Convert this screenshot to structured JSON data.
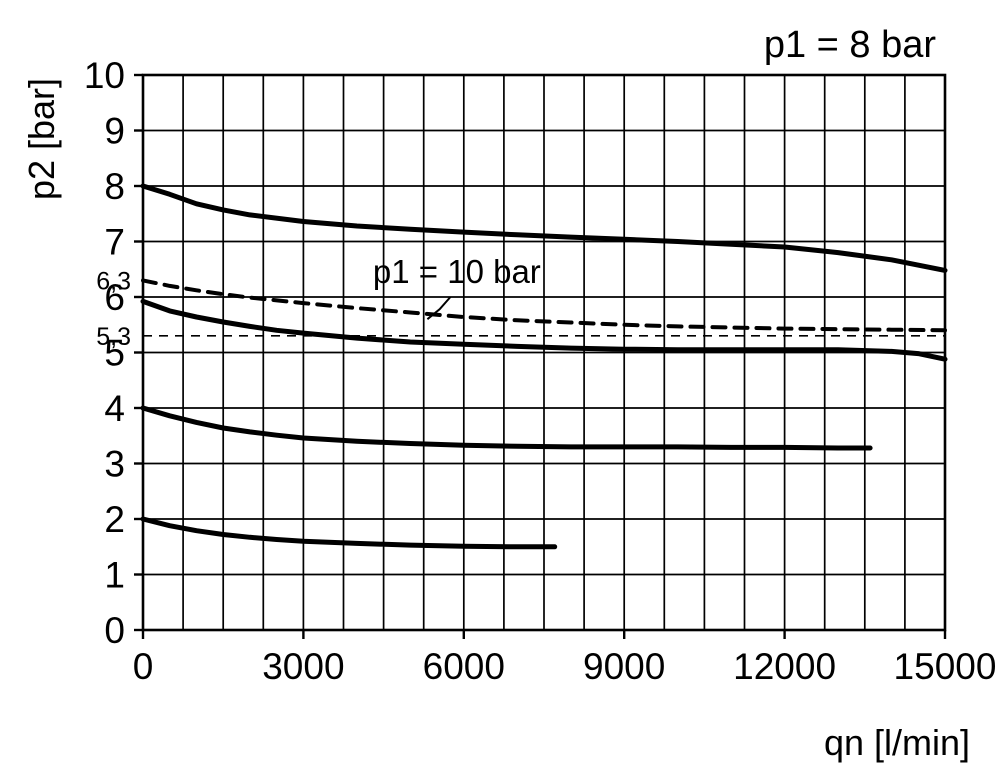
{
  "chart_data": {
    "type": "line",
    "title": "p1 = 8 bar",
    "xlabel": "qn [l/min]",
    "ylabel": "p2 [bar]",
    "xlim": [
      0,
      15000
    ],
    "ylim": [
      0,
      10
    ],
    "x_grid_step": 750,
    "y_grid_step": 1,
    "x_ticks": [
      0,
      3000,
      6000,
      9000,
      12000,
      15000
    ],
    "y_ticks": [
      0,
      1,
      2,
      3,
      4,
      5,
      6,
      7,
      8,
      9,
      10
    ],
    "extra_y_labels": [
      {
        "value": 6.3,
        "label": "6,3"
      },
      {
        "value": 5.3,
        "label": "5,3"
      }
    ],
    "reference_line": {
      "y": 5.3,
      "style": "thin-dashed"
    },
    "annotation": {
      "text": "p1 = 10 bar",
      "x": 4300,
      "y": 6.25,
      "leader": [
        [
          5750,
          6.0
        ],
        [
          5550,
          5.78
        ],
        [
          5320,
          5.6
        ]
      ]
    },
    "series": [
      {
        "id": "curve-setting-8bar",
        "style": "solid",
        "points": [
          [
            0,
            8.0
          ],
          [
            500,
            7.85
          ],
          [
            1000,
            7.68
          ],
          [
            1500,
            7.57
          ],
          [
            2000,
            7.48
          ],
          [
            3000,
            7.36
          ],
          [
            4000,
            7.28
          ],
          [
            5000,
            7.22
          ],
          [
            6000,
            7.17
          ],
          [
            7000,
            7.12
          ],
          [
            8000,
            7.08
          ],
          [
            9000,
            7.04
          ],
          [
            10000,
            7.0
          ],
          [
            11000,
            6.95
          ],
          [
            12000,
            6.9
          ],
          [
            13000,
            6.8
          ],
          [
            14000,
            6.67
          ],
          [
            15000,
            6.48
          ]
        ]
      },
      {
        "id": "curve-setting-6bar",
        "style": "solid",
        "points": [
          [
            0,
            5.92
          ],
          [
            500,
            5.75
          ],
          [
            1000,
            5.64
          ],
          [
            1500,
            5.55
          ],
          [
            2000,
            5.47
          ],
          [
            2500,
            5.4
          ],
          [
            3000,
            5.35
          ],
          [
            4000,
            5.26
          ],
          [
            5000,
            5.19
          ],
          [
            6000,
            5.15
          ],
          [
            7000,
            5.11
          ],
          [
            8000,
            5.08
          ],
          [
            9000,
            5.06
          ],
          [
            10000,
            5.05
          ],
          [
            11000,
            5.05
          ],
          [
            12000,
            5.05
          ],
          [
            13000,
            5.05
          ],
          [
            14000,
            5.02
          ],
          [
            14500,
            4.98
          ],
          [
            15000,
            4.88
          ]
        ]
      },
      {
        "id": "curve-p1-10bar",
        "label": "p1 = 10 bar",
        "style": "dashed",
        "points": [
          [
            0,
            6.3
          ],
          [
            500,
            6.2
          ],
          [
            1000,
            6.12
          ],
          [
            1500,
            6.05
          ],
          [
            2000,
            5.99
          ],
          [
            3000,
            5.89
          ],
          [
            4000,
            5.8
          ],
          [
            5000,
            5.72
          ],
          [
            6000,
            5.64
          ],
          [
            7000,
            5.58
          ],
          [
            8000,
            5.54
          ],
          [
            9000,
            5.5
          ],
          [
            10000,
            5.47
          ],
          [
            11000,
            5.45
          ],
          [
            12000,
            5.43
          ],
          [
            13000,
            5.42
          ],
          [
            14000,
            5.41
          ],
          [
            15000,
            5.4
          ]
        ]
      },
      {
        "id": "curve-setting-4bar",
        "style": "solid",
        "points": [
          [
            0,
            4.0
          ],
          [
            500,
            3.86
          ],
          [
            1000,
            3.74
          ],
          [
            1500,
            3.64
          ],
          [
            2000,
            3.57
          ],
          [
            2500,
            3.51
          ],
          [
            3000,
            3.46
          ],
          [
            4000,
            3.4
          ],
          [
            5000,
            3.36
          ],
          [
            6000,
            3.33
          ],
          [
            7000,
            3.31
          ],
          [
            8000,
            3.3
          ],
          [
            9000,
            3.3
          ],
          [
            10000,
            3.3
          ],
          [
            11000,
            3.29
          ],
          [
            12000,
            3.29
          ],
          [
            13000,
            3.28
          ],
          [
            13600,
            3.28
          ]
        ]
      },
      {
        "id": "curve-setting-2bar",
        "style": "solid",
        "points": [
          [
            0,
            2.0
          ],
          [
            500,
            1.88
          ],
          [
            1000,
            1.79
          ],
          [
            1500,
            1.72
          ],
          [
            2000,
            1.67
          ],
          [
            2500,
            1.63
          ],
          [
            3000,
            1.6
          ],
          [
            4000,
            1.56
          ],
          [
            5000,
            1.53
          ],
          [
            6000,
            1.51
          ],
          [
            7000,
            1.5
          ],
          [
            7700,
            1.5
          ]
        ]
      }
    ]
  }
}
